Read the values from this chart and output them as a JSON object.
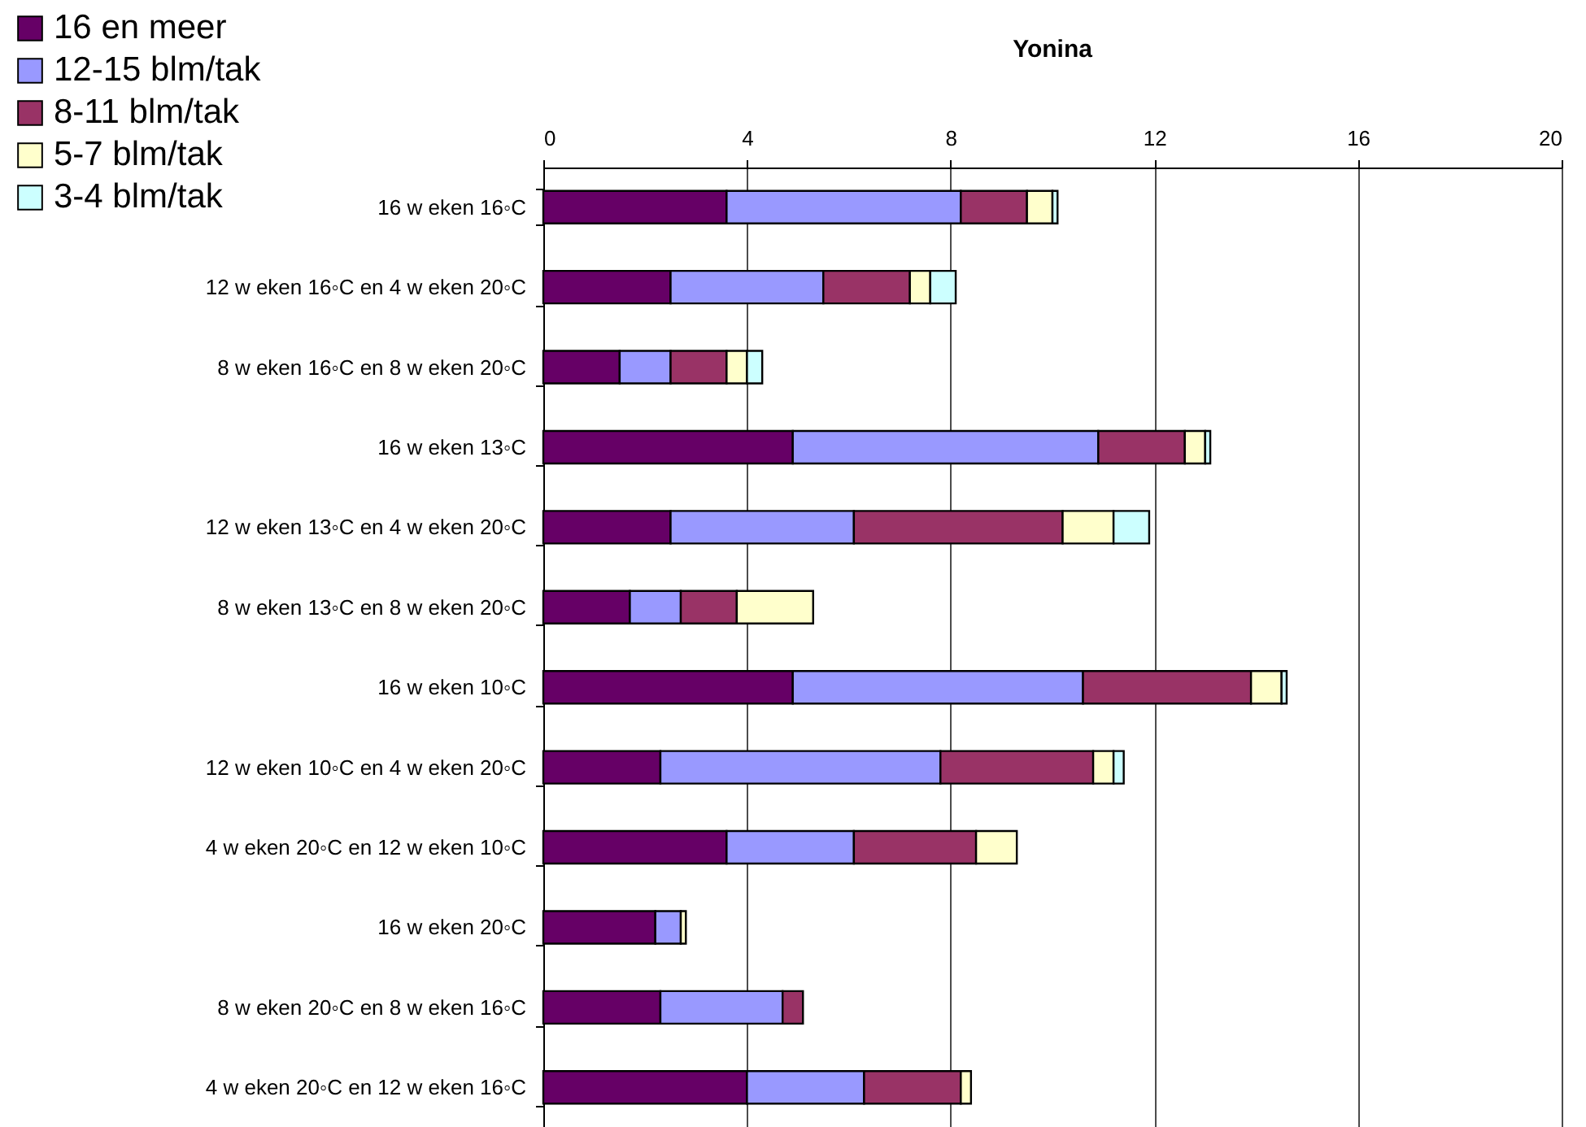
{
  "chart_data": {
    "type": "bar",
    "orientation": "horizontal",
    "stacked": true,
    "title": "Yonina",
    "categories": [
      "16 w eken 16◦C",
      "12 w eken 16◦C en 4 w eken 20◦C",
      "8 w eken 16◦C en 8 w eken 20◦C",
      "16 w eken 13◦C",
      "12 w eken 13◦C en 4 w eken 20◦C",
      "8 w eken 13◦C en 8 w eken 20◦C",
      "16 w eken 10◦C",
      "12 w eken 10◦C en 4 w eken 20◦C",
      "4 w eken 20◦C en 12 w eken 10◦C",
      "16 w eken 20◦C",
      "8 w eken 20◦C en 8 w eken 16◦C",
      "4 w eken 20◦C en 12 w eken 16◦C"
    ],
    "series": [
      {
        "name": "16 en meer",
        "color": "#660066",
        "values": [
          3.6,
          2.5,
          1.5,
          4.9,
          2.5,
          1.7,
          4.9,
          2.3,
          3.6,
          2.2,
          2.3,
          4.0
        ]
      },
      {
        "name": "12-15 blm/tak",
        "color": "#9999ff",
        "values": [
          4.6,
          3.0,
          1.0,
          6.0,
          3.6,
          1.0,
          5.7,
          5.5,
          2.5,
          0.5,
          2.4,
          2.3
        ]
      },
      {
        "name": "8-11 blm/tak",
        "color": "#993366",
        "values": [
          1.3,
          1.7,
          1.1,
          1.7,
          4.1,
          1.1,
          3.3,
          3.0,
          2.4,
          null,
          0.4,
          1.9
        ]
      },
      {
        "name": "5-7 blm/tak",
        "color": "#ffffcc",
        "values": [
          0.5,
          0.4,
          0.4,
          0.4,
          1.0,
          1.5,
          0.6,
          0.4,
          0.8,
          0.1,
          null,
          0.2
        ]
      },
      {
        "name": "3-4 blm/tak",
        "color": "#ccffff",
        "values": [
          0.1,
          0.5,
          0.3,
          0.1,
          0.7,
          null,
          0.1,
          0.2,
          null,
          null,
          null,
          null
        ]
      }
    ],
    "xlim": [
      0,
      20
    ],
    "xticks": [
      0,
      4,
      8,
      12,
      16,
      20
    ],
    "grid": "x",
    "legend": "top left"
  }
}
